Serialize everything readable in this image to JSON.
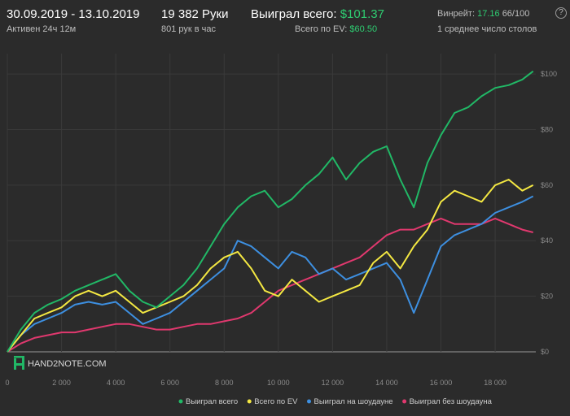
{
  "header": {
    "period": "30.09.2019 - 13.10.2019",
    "active": "Активен 24ч 12м",
    "hands": "19 382 Руки",
    "hands_per_hour": "801 рук в час",
    "won_label": "Выиграл всего:",
    "won_value": "$101.37",
    "ev_label": "Всего по EV:",
    "ev_value": "$60.50",
    "winrate_label": "Винрейт:",
    "winrate_value": "17.16",
    "winrate_unit": "66/100",
    "tables": "1 среднее число столов"
  },
  "logo": {
    "text": "HAND2NOTE.COM"
  },
  "colors": {
    "green": "#21b866",
    "yellow": "#f4e842",
    "blue": "#3d8fe0",
    "pink": "#e0386e",
    "grid": "#3a3a3a",
    "axis_text": "#8a8a8a",
    "accent_text": "#2ecc71"
  },
  "chart_data": {
    "type": "line",
    "xlim": [
      0,
      19500
    ],
    "ylim": [
      0,
      105
    ],
    "x_ticks": [
      0,
      2000,
      4000,
      6000,
      8000,
      10000,
      12000,
      14000,
      16000,
      18000
    ],
    "x_tick_labels": [
      "0",
      "2 000",
      "4 000",
      "6 000",
      "8 000",
      "10 000",
      "12 000",
      "14 000",
      "16 000",
      "18 000"
    ],
    "y_ticks": [
      0,
      20,
      40,
      60,
      80,
      100
    ],
    "y_tick_labels": [
      "$0",
      "$20",
      "$40",
      "$60",
      "$80",
      "$100"
    ],
    "grid": true,
    "legend_position": "bottom-right",
    "x": [
      0,
      500,
      1000,
      1500,
      2000,
      2500,
      3000,
      3500,
      4000,
      4500,
      5000,
      5500,
      6000,
      6500,
      7000,
      7500,
      8000,
      8500,
      9000,
      9500,
      10000,
      10500,
      11000,
      11500,
      12000,
      12500,
      13000,
      13500,
      14000,
      14500,
      15000,
      15500,
      16000,
      16500,
      17000,
      17500,
      18000,
      18500,
      19000,
      19400
    ],
    "series": [
      {
        "name": "Выиграл всего",
        "color": "#21b866",
        "values": [
          0,
          8,
          14,
          17,
          19,
          22,
          24,
          26,
          28,
          22,
          18,
          16,
          20,
          24,
          30,
          38,
          46,
          52,
          56,
          58,
          52,
          55,
          60,
          64,
          70,
          62,
          68,
          72,
          74,
          62,
          52,
          68,
          78,
          86,
          88,
          92,
          95,
          96,
          98,
          101
        ]
      },
      {
        "name": "Всего по EV",
        "color": "#f4e842",
        "values": [
          0,
          6,
          12,
          14,
          16,
          20,
          22,
          20,
          22,
          18,
          14,
          16,
          18,
          20,
          24,
          30,
          34,
          36,
          30,
          22,
          20,
          26,
          22,
          18,
          20,
          22,
          24,
          32,
          36,
          30,
          38,
          44,
          54,
          58,
          56,
          54,
          60,
          62,
          58,
          60
        ]
      },
      {
        "name": "Выиграл на шоудауне",
        "color": "#3d8fe0",
        "values": [
          0,
          6,
          10,
          12,
          14,
          17,
          18,
          17,
          18,
          14,
          10,
          12,
          14,
          18,
          22,
          26,
          30,
          40,
          38,
          34,
          30,
          36,
          34,
          28,
          30,
          26,
          28,
          30,
          32,
          26,
          14,
          26,
          38,
          42,
          44,
          46,
          50,
          52,
          54,
          56
        ]
      },
      {
        "name": "Выиграл без шоудауна",
        "color": "#e0386e",
        "values": [
          0,
          3,
          5,
          6,
          7,
          7,
          8,
          9,
          10,
          10,
          9,
          8,
          8,
          9,
          10,
          10,
          11,
          12,
          14,
          18,
          22,
          24,
          26,
          28,
          30,
          32,
          34,
          38,
          42,
          44,
          44,
          46,
          48,
          46,
          46,
          46,
          48,
          46,
          44,
          43
        ]
      }
    ]
  }
}
